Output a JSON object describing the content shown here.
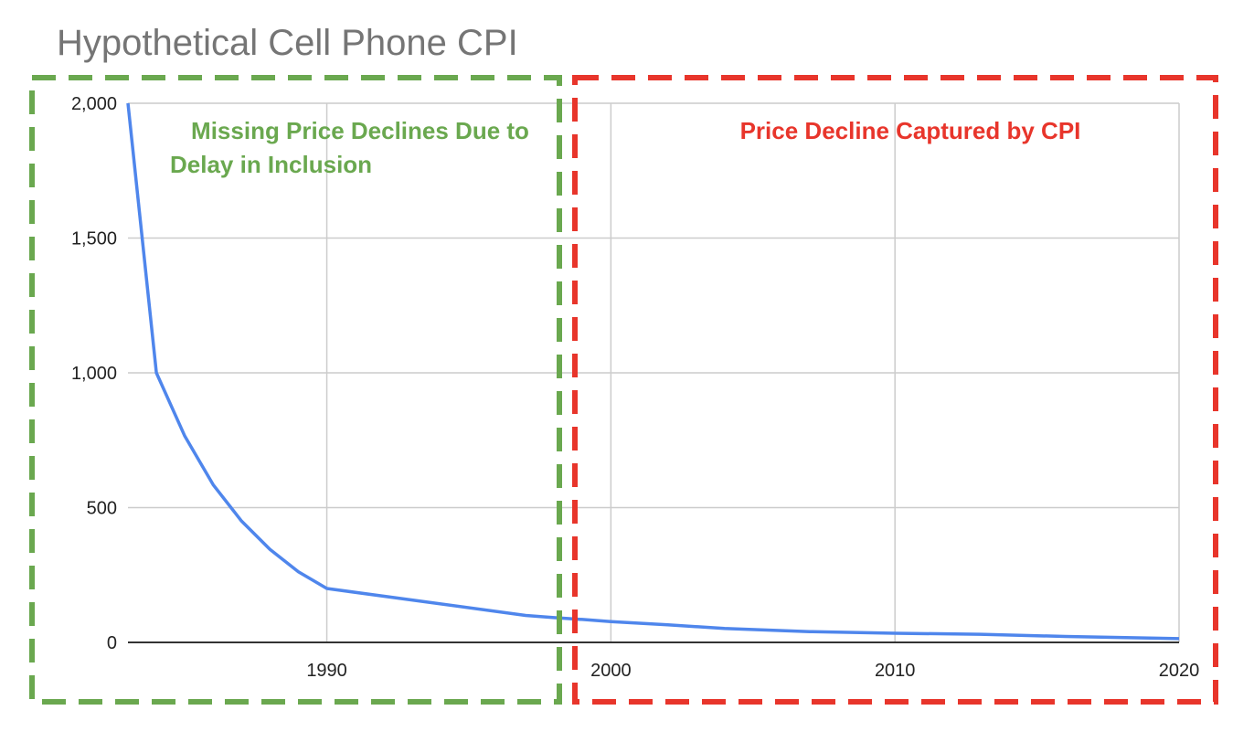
{
  "chart_data": {
    "type": "line",
    "title": "Hypothetical Cell Phone CPI",
    "xlabel": "",
    "ylabel": "",
    "xlim": [
      1983,
      2020
    ],
    "ylim": [
      0,
      2000
    ],
    "grid": true,
    "x_ticks": [
      1990,
      2000,
      2010,
      2020
    ],
    "x_tick_labels": [
      "1990",
      "2000",
      "2010",
      "2020"
    ],
    "y_ticks": [
      0,
      500,
      1000,
      1500,
      2000
    ],
    "y_tick_labels": [
      "0",
      "500",
      "1,000",
      "1,500",
      "2,000"
    ],
    "series": [
      {
        "color": "#4f86ec",
        "x": [
          1983,
          1984,
          1985,
          1986,
          1987,
          1988,
          1989,
          1990,
          1997,
          1998,
          1999,
          2000,
          2002,
          2004,
          2007,
          2010,
          2013,
          2016,
          2020
        ],
        "y": [
          2000,
          1000,
          765,
          585,
          450,
          345,
          262,
          200,
          100,
          92,
          85,
          77,
          65,
          52,
          40,
          34,
          30,
          22,
          14
        ]
      }
    ],
    "annotations": [
      {
        "lines": [
          "Missing Price Declines Due to",
          "Delay in Inclusion"
        ],
        "color": "#6aa84f",
        "x_range": [
          1980,
          1998.3
        ]
      },
      {
        "lines": [
          "Price Decline Captured by CPI"
        ],
        "color": "#e8352b",
        "x_range": [
          1998.8,
          2021
        ]
      }
    ]
  }
}
